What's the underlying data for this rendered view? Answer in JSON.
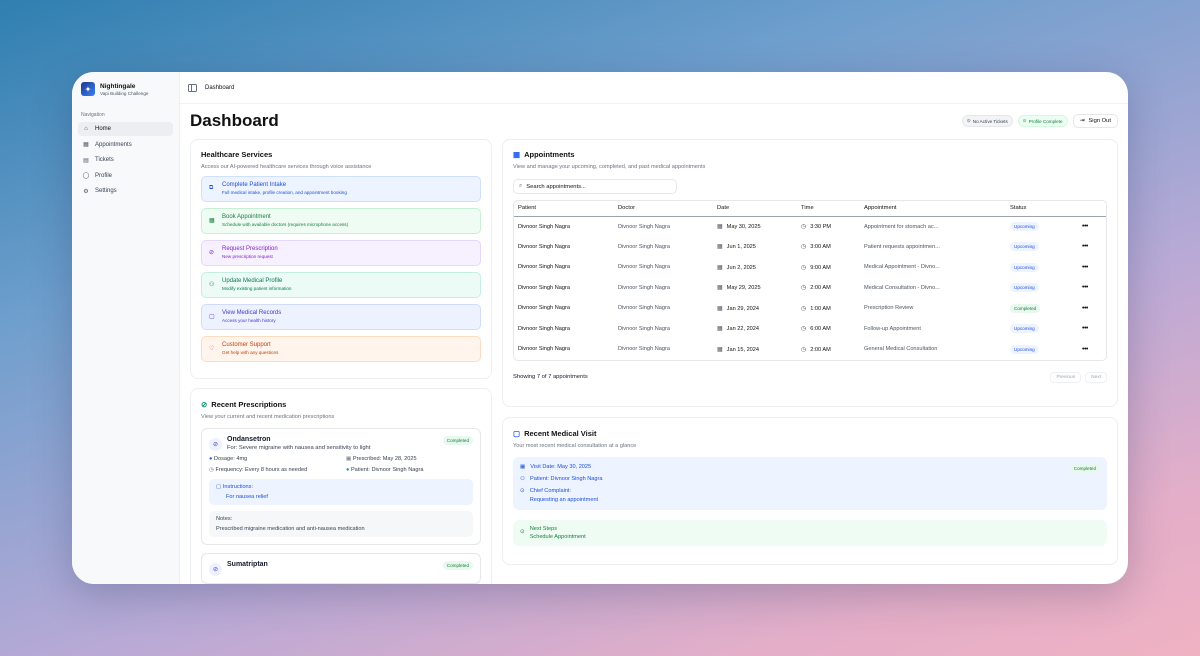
{
  "brand": {
    "name": "Nightingale",
    "subtitle": "Vapi Building Challenge"
  },
  "nav": {
    "title": "Navigation",
    "items": [
      {
        "label": "Home",
        "icon": "home-icon"
      },
      {
        "label": "Appointments",
        "icon": "calendar-icon"
      },
      {
        "label": "Tickets",
        "icon": "ticket-icon"
      },
      {
        "label": "Profile",
        "icon": "user-icon"
      },
      {
        "label": "Settings",
        "icon": "gear-icon"
      }
    ]
  },
  "topbar": {
    "breadcrumb": "Dashboard"
  },
  "header": {
    "title": "Dashboard",
    "no_tickets": "No Active Tickets",
    "profile_complete": "Profile Complete",
    "sign_out": "Sign Out"
  },
  "services": {
    "title": "Healthcare Services",
    "subtitle": "Access our AI-powered healthcare services through voice assistance",
    "items": [
      {
        "title": "Complete Patient Intake",
        "desc": "Full medical intake, profile creation, and appointment booking"
      },
      {
        "title": "Book Appointment",
        "desc": "Schedule with available doctors (requires microphone access)"
      },
      {
        "title": "Request Prescription",
        "desc": "New prescription request"
      },
      {
        "title": "Update Medical Profile",
        "desc": "Modify existing patient information"
      },
      {
        "title": "View Medical Records",
        "desc": "Access your health history"
      },
      {
        "title": "Customer Support",
        "desc": "Get help with any questions"
      }
    ]
  },
  "appointments": {
    "title": "Appointments",
    "subtitle": "View and manage your upcoming, completed, and past medical appointments",
    "search_placeholder": "Search appointments...",
    "columns": [
      "Patient",
      "Doctor",
      "Date",
      "Time",
      "Appointment",
      "Status"
    ],
    "rows": [
      {
        "patient": "Divnoor Singh Nagra",
        "doctor": "Divnoor Singh Nagra",
        "date": "May 30, 2025",
        "time": "3:30 PM",
        "appointment": "Appointment for stomach ac...",
        "status": "Upcoming"
      },
      {
        "patient": "Divnoor Singh Nagra",
        "doctor": "Divnoor Singh Nagra",
        "date": "Jun 1, 2025",
        "time": "3:00 AM",
        "appointment": "Patient requests appointmen...",
        "status": "Upcoming"
      },
      {
        "patient": "Divnoor Singh Nagra",
        "doctor": "Divnoor Singh Nagra",
        "date": "Jun 2, 2025",
        "time": "9:00 AM",
        "appointment": "Medical Appointment - Divno...",
        "status": "Upcoming"
      },
      {
        "patient": "Divnoor Singh Nagra",
        "doctor": "Divnoor Singh Nagra",
        "date": "May 29, 2025",
        "time": "2:00 AM",
        "appointment": "Medical Consultation - Divno...",
        "status": "Upcoming"
      },
      {
        "patient": "Divnoor Singh Nagra",
        "doctor": "Divnoor Singh Nagra",
        "date": "Jan 29, 2024",
        "time": "1:00 AM",
        "appointment": "Prescription Review",
        "status": "Completed"
      },
      {
        "patient": "Divnoor Singh Nagra",
        "doctor": "Divnoor Singh Nagra",
        "date": "Jan 22, 2024",
        "time": "6:00 AM",
        "appointment": "Follow-up Appointment",
        "status": "Upcoming"
      },
      {
        "patient": "Divnoor Singh Nagra",
        "doctor": "Divnoor Singh Nagra",
        "date": "Jan 15, 2024",
        "time": "2:00 AM",
        "appointment": "General Medical Consultation",
        "status": "Upcoming"
      }
    ],
    "showing": "Showing 7 of 7 appointments",
    "prev": "Previous",
    "next": "Next"
  },
  "prescriptions": {
    "title": "Recent Prescriptions",
    "subtitle": "View your current and recent medication prescriptions",
    "items": [
      {
        "name": "Ondansetron",
        "for": "For: Severe migraine with nausea and sensitivity to light",
        "status": "Completed",
        "dosage_label": "Dosage:",
        "dosage": "4mg",
        "prescribed_label": "Prescribed:",
        "prescribed": "May 28, 2025",
        "frequency_label": "Frequency:",
        "frequency": "Every 8 hours as needed",
        "patient_label": "Patient:",
        "patient": "Divnoor Singh Nagra",
        "instructions_label": "Instructions:",
        "instructions": "For nausea relief",
        "notes_label": "Notes:",
        "notes": "Prescribed migraine medication and anti-nausea medication"
      },
      {
        "name": "Sumatriptan",
        "status": "Completed"
      }
    ]
  },
  "visit": {
    "title": "Recent Medical Visit",
    "subtitle": "Your most recent medical consultation at a glance",
    "date": "Visit Date: May 30, 2025",
    "status": "Completed",
    "patient": "Patient: Divnoor Singh Nagra",
    "complaint_label": "Chief Complaint:",
    "complaint": "Requesting an appointment",
    "next_label": "Next Steps",
    "next": "Schedule Appointment"
  }
}
